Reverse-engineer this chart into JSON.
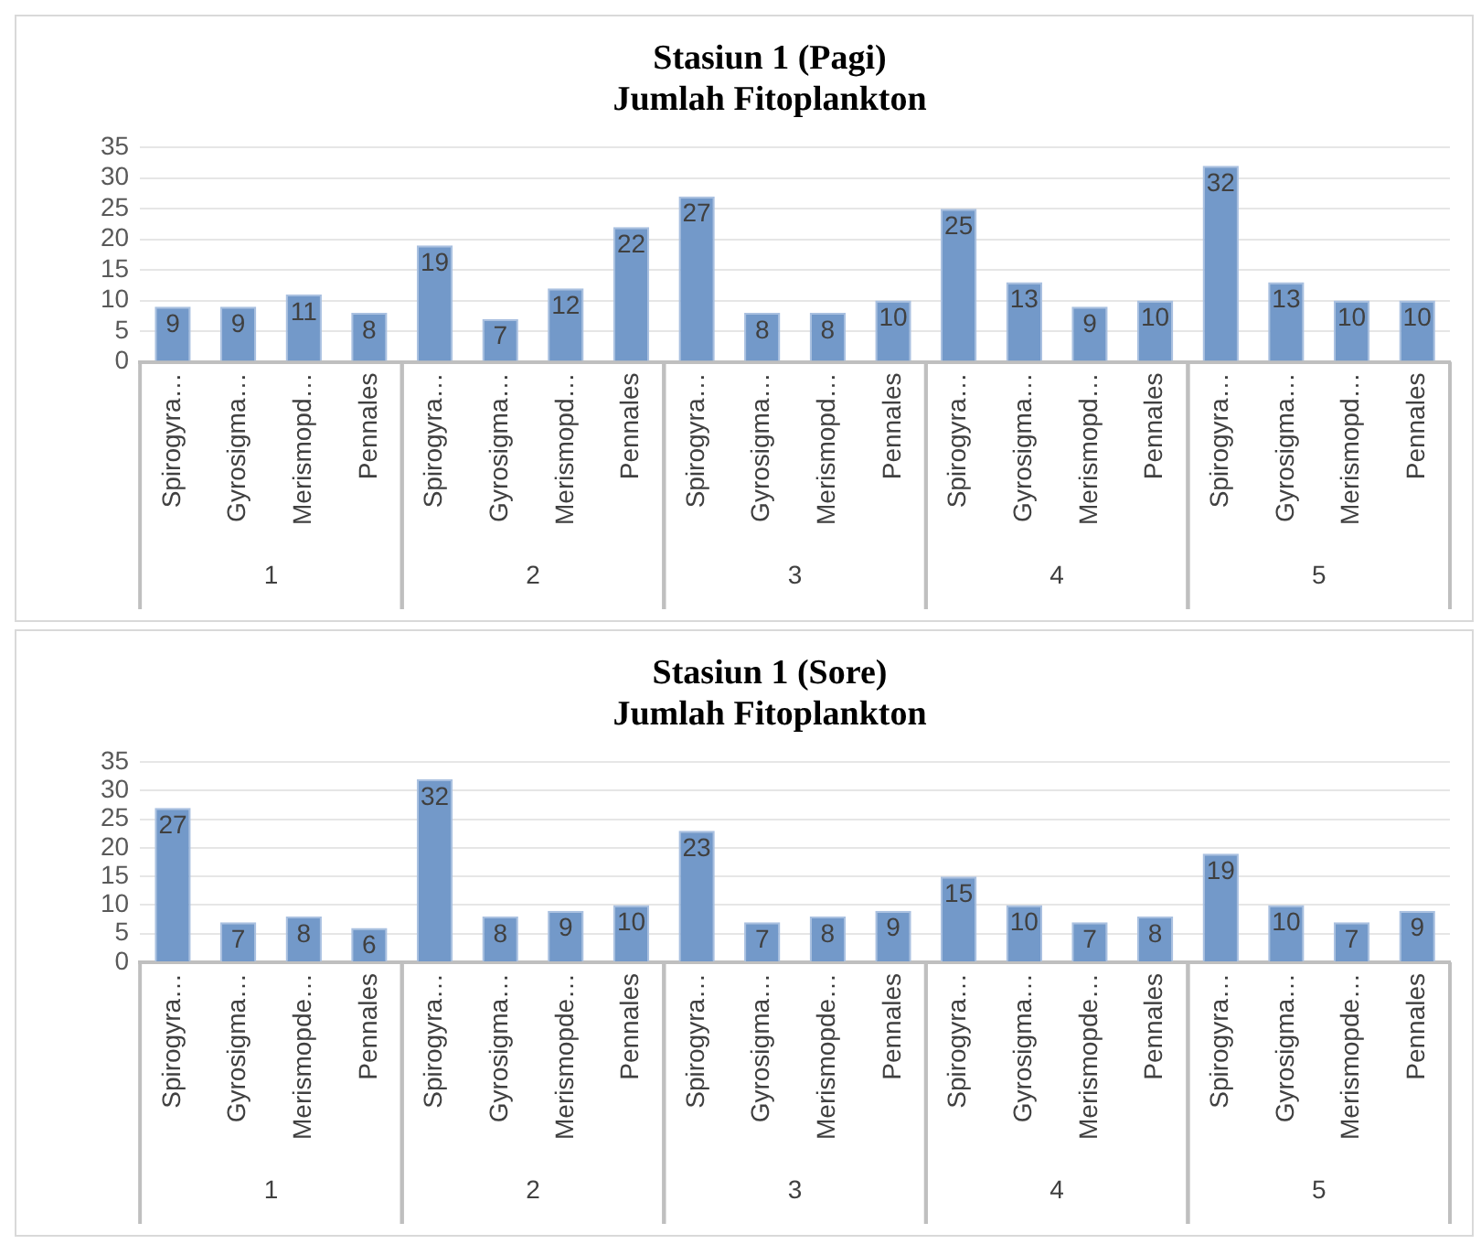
{
  "chart_data": [
    {
      "type": "bar",
      "title": "Stasiun 1 (Pagi)",
      "subtitle": "Jumlah Fitoplankton",
      "categories": [
        "Spirogyra…",
        "Gyrosigma…",
        "Merismopd…",
        "Pennales",
        "Spirogyra…",
        "Gyrosigma…",
        "Merismopd…",
        "Pennales",
        "Spirogyra…",
        "Gyrosigma…",
        "Merismopd…",
        "Pennales",
        "Spirogyra…",
        "Gyrosigma…",
        "Merismopd…",
        "Pennales",
        "Spirogyra…",
        "Gyrosigma…",
        "Merismopd…",
        "Pennales"
      ],
      "values": [
        9,
        9,
        11,
        8,
        19,
        7,
        12,
        22,
        27,
        8,
        8,
        10,
        25,
        13,
        9,
        10,
        32,
        13,
        10,
        10
      ],
      "color": "#7399c9",
      "ylim": [
        0,
        35
      ],
      "yticks": [
        0,
        5,
        10,
        15,
        20,
        25,
        30,
        35
      ],
      "grid": "y",
      "data_labels": true,
      "annotations": [
        "1",
        "2",
        "3",
        "4",
        "5"
      ]
    },
    {
      "type": "bar",
      "title": "Stasiun 1 (Sore)",
      "subtitle": "Jumlah Fitoplankton",
      "categories": [
        "Spirogyra…",
        "Gyrosigma…",
        "Merismopde…",
        "Pennales",
        "Spirogyra…",
        "Gyrosigma…",
        "Merismopde…",
        "Pennales",
        "Spirogyra…",
        "Gyrosigma…",
        "Merismopde…",
        "Pennales",
        "Spirogyra…",
        "Gyrosigma…",
        "Merismopde…",
        "Pennales",
        "Spirogyra…",
        "Gyrosigma…",
        "Merismopde…",
        "Pennales"
      ],
      "values": [
        27,
        7,
        8,
        6,
        32,
        8,
        9,
        10,
        23,
        7,
        8,
        9,
        15,
        10,
        7,
        8,
        19,
        10,
        7,
        9
      ],
      "color": "#7399c9",
      "ylim": [
        0,
        35
      ],
      "yticks": [
        0,
        5,
        10,
        15,
        20,
        25,
        30,
        35
      ],
      "grid": "y",
      "data_labels": true,
      "annotations": [
        "1",
        "2",
        "3",
        "4",
        "5"
      ]
    }
  ]
}
